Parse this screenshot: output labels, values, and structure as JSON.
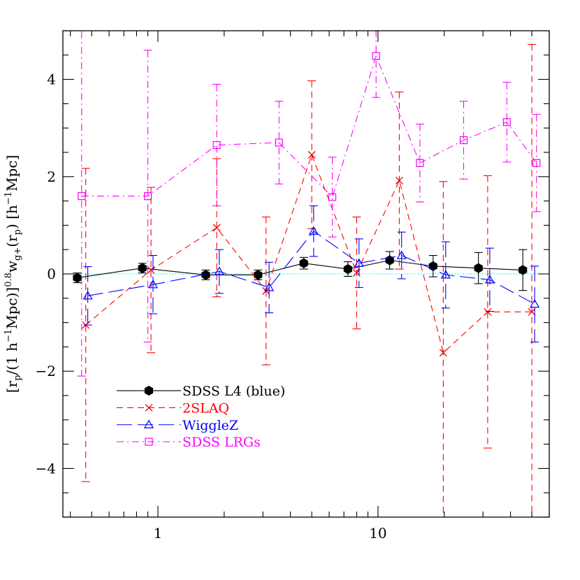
{
  "chart_data": {
    "type": "scatter",
    "title": "",
    "xlabel": "",
    "ylabel": "[r_p/(1 h^-1Mpc)]^0.8 w_g+(r_p) [h^-1Mpc]",
    "ylabel_parts": {
      "open": "[r",
      "p1": "p",
      "div": "/(1 h",
      "exp1": "−1",
      "mpc": "Mpc)]",
      "exp2": "0.8",
      "w": "w",
      "gsub": "g+",
      "arg": "(r",
      "p2": "p",
      "close": ")  [h",
      "exp3": "−1",
      "unit": "Mpc]"
    },
    "xscale": "log",
    "xlim": [
      0.37,
      60
    ],
    "ylim": [
      -5,
      5
    ],
    "x_ticks": [
      1,
      10
    ],
    "x_tick_labels": [
      "1",
      "10"
    ],
    "y_ticks": [
      -4,
      -2,
      0,
      2,
      4
    ],
    "y_tick_labels": [
      "−4",
      "−2",
      "0",
      "2",
      "4"
    ],
    "reference_line": {
      "y": 0,
      "color": "#00ffff"
    },
    "legend_position": "bottom-left",
    "series": [
      {
        "name": "SDSS L4 (blue)",
        "color": "#000000",
        "marker": "filled-hexagon",
        "line": "solid",
        "x": [
          0.43,
          0.85,
          1.65,
          2.85,
          4.6,
          7.3,
          11.3,
          17.8,
          28.6,
          45.5
        ],
        "y": [
          -0.08,
          0.12,
          -0.02,
          -0.02,
          0.22,
          0.1,
          0.28,
          0.16,
          0.12,
          0.08
        ],
        "yerr": [
          0.1,
          0.1,
          0.1,
          0.1,
          0.12,
          0.15,
          0.18,
          0.22,
          0.32,
          0.42
        ]
      },
      {
        "name": "2SLAQ",
        "color": "#ff0000",
        "marker": "x",
        "line": "dashed",
        "x": [
          0.47,
          0.93,
          1.85,
          3.1,
          5.0,
          8.0,
          12.5,
          19.8,
          31.5,
          50.0
        ],
        "y": [
          -1.05,
          0.08,
          0.95,
          -0.35,
          2.45,
          0.02,
          1.92,
          -1.62,
          -0.78,
          -0.78
        ],
        "yerr": [
          3.22,
          1.7,
          1.42,
          1.52,
          1.52,
          1.15,
          1.82,
          3.52,
          2.8,
          5.5
        ]
      },
      {
        "name": "WiggleZ",
        "color": "#0000ff",
        "marker": "open-triangle",
        "line": "long-dashed",
        "x": [
          0.48,
          0.95,
          1.9,
          3.2,
          5.1,
          8.2,
          12.8,
          20.3,
          32.2,
          51.5
        ],
        "y": [
          -0.45,
          -0.22,
          0.05,
          -0.28,
          0.88,
          0.22,
          0.38,
          -0.02,
          -0.12,
          -0.62
        ],
        "yerr": [
          0.6,
          0.6,
          0.45,
          0.52,
          0.52,
          0.5,
          0.48,
          0.68,
          0.65,
          0.78
        ]
      },
      {
        "name": "SDSS LRGs",
        "color": "#ff00ff",
        "marker": "open-square",
        "line": "dash-dot",
        "x": [
          0.45,
          0.9,
          1.85,
          3.55,
          6.2,
          9.8,
          15.5,
          24.5,
          38.5,
          52.5
        ],
        "y": [
          1.6,
          1.6,
          2.65,
          2.7,
          1.58,
          4.48,
          2.28,
          2.75,
          3.12,
          2.28
        ],
        "yerr": [
          3.7,
          3.0,
          1.25,
          0.85,
          0.82,
          0.85,
          0.8,
          0.8,
          0.82,
          1.0
        ]
      }
    ]
  }
}
